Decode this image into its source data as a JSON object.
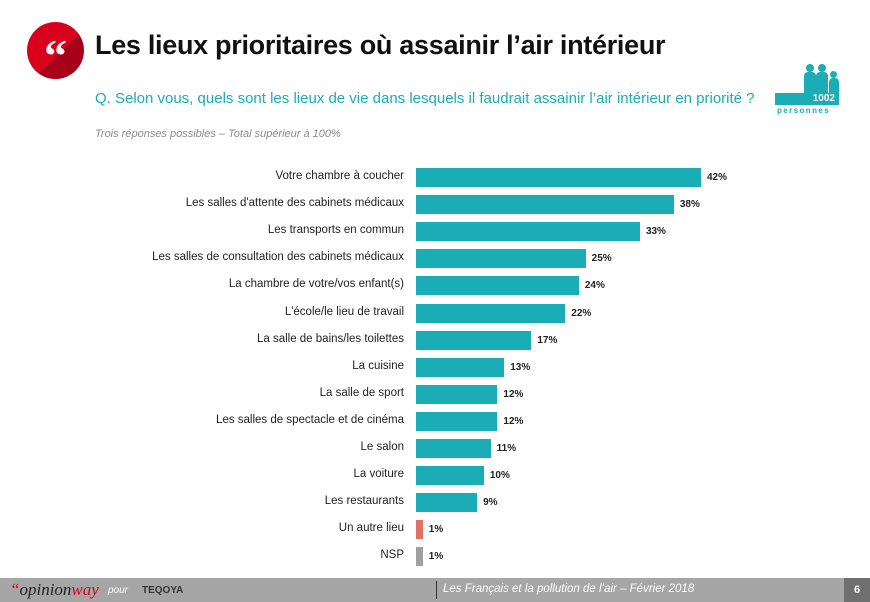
{
  "header": {
    "title": "Les lieux prioritaires où assainir l’air intérieur",
    "quote_icon": "quote-icon",
    "brand_color": "#d9001b"
  },
  "question": "Q. Selon vous, quels sont les lieux de vie dans lesquels il faudrait assainir l’air intérieur en priorité ?",
  "note": "Trois réponses possibles – Total supérieur à 100%",
  "sample": {
    "count": "1002",
    "label": "personnes",
    "icon": "people-icon"
  },
  "chart_data": {
    "type": "bar",
    "orientation": "horizontal",
    "xlim": [
      0,
      100
    ],
    "grid": false,
    "categories": [
      "Votre chambre à coucher",
      "Les salles d'attente des cabinets médicaux",
      "Les transports en commun",
      "Les salles de consultation des cabinets médicaux",
      "La chambre de votre/vos enfant(s)",
      "L'école/le lieu de travail",
      "La salle de bains/les toilettes",
      "La cuisine",
      "La salle de sport",
      "Les salles de spectacle et de cinéma",
      "Le salon",
      "La voiture",
      "Les restaurants",
      "Un autre lieu",
      "NSP"
    ],
    "values": [
      42,
      38,
      33,
      25,
      24,
      22,
      17,
      13,
      12,
      12,
      11,
      10,
      9,
      1,
      1
    ],
    "value_labels": [
      "42%",
      "38%",
      "33%",
      "25%",
      "24%",
      "22%",
      "17%",
      "13%",
      "12%",
      "12%",
      "11%",
      "10%",
      "9%",
      "1%",
      "1%"
    ],
    "colors": [
      "#1aadb5",
      "#1aadb5",
      "#1aadb5",
      "#1aadb5",
      "#1aadb5",
      "#1aadb5",
      "#1aadb5",
      "#1aadb5",
      "#1aadb5",
      "#1aadb5",
      "#1aadb5",
      "#1aadb5",
      "#1aadb5",
      "#e07060",
      "#a0a0a0"
    ]
  },
  "footer": {
    "brand_prefix": "“",
    "brand_opinion": "opinion",
    "brand_way": "way",
    "pour": "pour",
    "partner": "TEQOYA",
    "subtitle": "Les Français et la pollution de l’air – Février 2018",
    "page": "6"
  }
}
